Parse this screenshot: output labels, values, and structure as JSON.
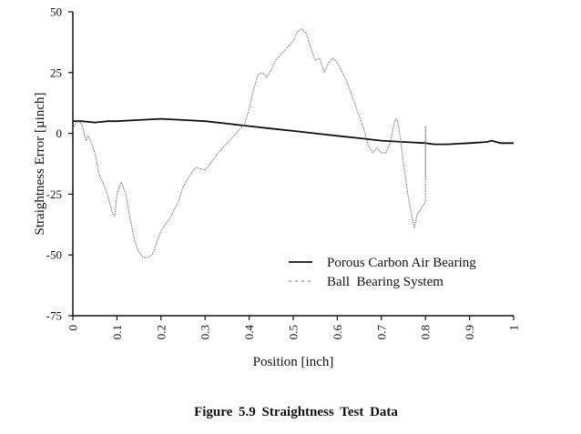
{
  "caption": "Figure 5.9   Straightness Test Data",
  "chart_data": {
    "type": "line",
    "title": "Straightness Test Data",
    "xlabel": "Position  [inch]",
    "ylabel": "Straightness Error  [µinch]",
    "xlim": [
      0,
      1
    ],
    "ylim": [
      -75,
      50
    ],
    "xticks": [
      "0",
      "0.1",
      "0.2",
      "0.3",
      "0.4",
      "0.5",
      "0.6",
      "0.7",
      "0.8",
      "0.9",
      "1"
    ],
    "yticks": [
      "50",
      "25",
      "0",
      "-25",
      "-50",
      "-75"
    ],
    "grid": false,
    "legend_position": "lower right (inside)",
    "series": [
      {
        "name": "Porous Carbon Air Bearing",
        "style": "solid",
        "color": "#111111",
        "x": [
          0,
          0.02,
          0.05,
          0.08,
          0.1,
          0.15,
          0.2,
          0.25,
          0.3,
          0.35,
          0.4,
          0.45,
          0.5,
          0.55,
          0.6,
          0.65,
          0.7,
          0.75,
          0.8,
          0.82,
          0.85,
          0.9,
          0.94,
          0.95,
          0.97,
          1.0
        ],
        "y": [
          5,
          5,
          4.5,
          5,
          5,
          5.5,
          6,
          5.5,
          5,
          4,
          3,
          2,
          1,
          0,
          -1,
          -2,
          -3,
          -3.5,
          -4,
          -4.5,
          -4.5,
          -4,
          -3.5,
          -3,
          -4,
          -4
        ]
      },
      {
        "name": "Ball  Bearing System",
        "style": "dotted",
        "color": "#777777",
        "x": [
          0,
          0.01,
          0.02,
          0.03,
          0.035,
          0.04,
          0.05,
          0.06,
          0.07,
          0.08,
          0.09,
          0.095,
          0.1,
          0.11,
          0.12,
          0.13,
          0.14,
          0.15,
          0.16,
          0.17,
          0.18,
          0.19,
          0.2,
          0.22,
          0.24,
          0.25,
          0.27,
          0.28,
          0.3,
          0.31,
          0.33,
          0.35,
          0.37,
          0.38,
          0.39,
          0.4,
          0.41,
          0.42,
          0.43,
          0.44,
          0.45,
          0.46,
          0.48,
          0.5,
          0.51,
          0.52,
          0.53,
          0.54,
          0.55,
          0.56,
          0.57,
          0.58,
          0.59,
          0.6,
          0.62,
          0.64,
          0.66,
          0.67,
          0.68,
          0.69,
          0.7,
          0.71,
          0.72,
          0.73,
          0.735,
          0.74,
          0.75,
          0.76,
          0.77,
          0.775,
          0.78,
          0.79,
          0.8,
          0.8,
          0.8
        ],
        "y": [
          2,
          5,
          4,
          -3,
          -1,
          -3,
          -8,
          -17,
          -21,
          -26,
          -33,
          -34,
          -25,
          -20,
          -25,
          -35,
          -44,
          -49,
          -51,
          -51,
          -50,
          -45,
          -40,
          -35,
          -28,
          -22,
          -16,
          -14,
          -15,
          -13,
          -8,
          -4,
          0,
          2,
          4,
          10,
          18,
          24,
          25,
          23,
          26,
          30,
          34,
          38,
          42,
          43,
          41,
          35,
          30,
          31,
          25,
          29,
          31,
          29,
          22,
          12,
          2,
          -5,
          -8,
          -6,
          -8,
          -8,
          -4,
          5,
          6,
          2,
          -12,
          -25,
          -35,
          -39,
          -34,
          -31,
          -28,
          3,
          -18
        ]
      }
    ]
  }
}
